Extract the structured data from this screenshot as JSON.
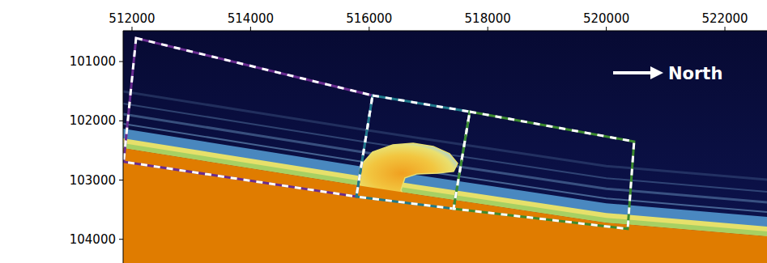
{
  "chart_data": {
    "type": "map",
    "xlim": [
      511850,
      522710
    ],
    "ylim": [
      104400,
      100480
    ],
    "xticks": [
      512000,
      514000,
      516000,
      518000,
      520000,
      522000
    ],
    "yticks": [
      101000,
      102000,
      103000,
      104000
    ],
    "annotations": [
      {
        "text": "North"
      }
    ],
    "seabed": [
      [
        511850,
        102460
      ],
      [
        514000,
        102800
      ],
      [
        516000,
        103120
      ],
      [
        518000,
        103420
      ],
      [
        520000,
        103720
      ],
      [
        522710,
        103950
      ]
    ],
    "plume": [
      [
        515784,
        103237
      ],
      [
        515852,
        102760
      ],
      [
        516057,
        102528
      ],
      [
        516399,
        102405
      ],
      [
        516740,
        102378
      ],
      [
        517082,
        102432
      ],
      [
        517355,
        102555
      ],
      [
        517492,
        102719
      ],
      [
        517423,
        102855
      ],
      [
        517150,
        102882
      ],
      [
        516808,
        102896
      ],
      [
        516603,
        102964
      ],
      [
        516535,
        103169
      ],
      [
        516603,
        103305
      ],
      [
        516194,
        103305
      ],
      [
        515852,
        103305
      ]
    ],
    "regions": [
      {
        "color": "#6a2c91",
        "points": [
          [
            512068,
            100604
          ],
          [
            516057,
            101573
          ],
          [
            515784,
            103278
          ],
          [
            511860,
            102691
          ]
        ]
      },
      {
        "color": "#1f7a8c",
        "points": [
          [
            516057,
            101573
          ],
          [
            517696,
            101846
          ],
          [
            517423,
            103483
          ],
          [
            515784,
            103278
          ]
        ]
      },
      {
        "color": "#3d8b2f",
        "points": [
          [
            517696,
            101846
          ],
          [
            520469,
            102350
          ],
          [
            520360,
            103823
          ],
          [
            517423,
            103483
          ]
        ]
      }
    ]
  }
}
